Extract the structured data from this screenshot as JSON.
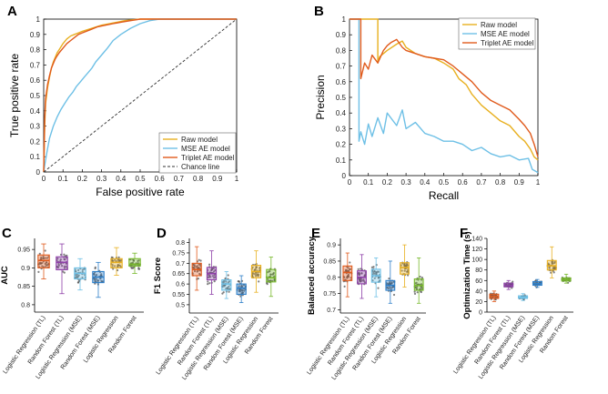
{
  "colors": {
    "raw": "#E8B020",
    "mse": "#6EC0E6",
    "triplet": "#E05A1C",
    "chance": "#333333",
    "box": [
      "#E05A1C",
      "#8E3FA8",
      "#6EC0E6",
      "#2E7FC8",
      "#E8B020",
      "#76B82A"
    ]
  },
  "chart_data": [
    {
      "panel": "A",
      "type": "line",
      "title": "",
      "xlabel": "False positive rate",
      "ylabel": "True positive rate",
      "xlim": [
        0,
        1
      ],
      "ylim": [
        0,
        1
      ],
      "xticks": [
        "0",
        "0.1",
        "0.2",
        "0.3",
        "0.4",
        "0.5",
        "0.6",
        "0.7",
        "0.8",
        "0.9",
        "1"
      ],
      "yticks": [
        "0",
        "0.1",
        "0.2",
        "0.3",
        "0.4",
        "0.5",
        "0.6",
        "0.7",
        "0.8",
        "0.9",
        "1"
      ],
      "legend_position": "bottom-right",
      "series": [
        {
          "name": "Raw model",
          "color_key": "raw",
          "dash": false,
          "x": [
            0,
            0.005,
            0.01,
            0.02,
            0.03,
            0.04,
            0.05,
            0.06,
            0.07,
            0.08,
            0.1,
            0.12,
            0.14,
            0.16,
            0.18,
            0.2,
            0.25,
            0.3,
            0.34,
            0.38,
            0.42,
            0.5,
            1.0
          ],
          "y": [
            0,
            0.3,
            0.45,
            0.55,
            0.62,
            0.68,
            0.72,
            0.75,
            0.78,
            0.8,
            0.84,
            0.87,
            0.89,
            0.9,
            0.91,
            0.92,
            0.94,
            0.96,
            0.97,
            0.98,
            0.99,
            1.0,
            1.0
          ]
        },
        {
          "name": "MSE AE model",
          "color_key": "mse",
          "dash": false,
          "x": [
            0,
            0.01,
            0.02,
            0.03,
            0.05,
            0.07,
            0.09,
            0.11,
            0.13,
            0.15,
            0.17,
            0.19,
            0.21,
            0.23,
            0.25,
            0.27,
            0.29,
            0.31,
            0.33,
            0.36,
            0.4,
            0.45,
            0.5,
            0.55,
            0.6,
            1.0
          ],
          "y": [
            0,
            0.08,
            0.15,
            0.22,
            0.3,
            0.36,
            0.41,
            0.45,
            0.49,
            0.52,
            0.56,
            0.59,
            0.62,
            0.65,
            0.68,
            0.72,
            0.75,
            0.78,
            0.81,
            0.86,
            0.9,
            0.94,
            0.97,
            0.99,
            1.0,
            1.0
          ]
        },
        {
          "name": "Triplet AE model",
          "color_key": "triplet",
          "dash": false,
          "x": [
            0,
            0.005,
            0.01,
            0.02,
            0.03,
            0.04,
            0.05,
            0.06,
            0.07,
            0.08,
            0.1,
            0.12,
            0.14,
            0.16,
            0.18,
            0.2,
            0.24,
            0.28,
            0.32,
            0.36,
            0.4,
            0.45,
            0.5,
            1.0
          ],
          "y": [
            0,
            0.35,
            0.48,
            0.57,
            0.63,
            0.68,
            0.71,
            0.74,
            0.76,
            0.78,
            0.81,
            0.84,
            0.86,
            0.88,
            0.9,
            0.91,
            0.93,
            0.95,
            0.96,
            0.97,
            0.98,
            0.99,
            1.0,
            1.0
          ]
        },
        {
          "name": "Chance line",
          "color_key": "chance",
          "dash": true,
          "x": [
            0,
            1
          ],
          "y": [
            0,
            1
          ]
        }
      ]
    },
    {
      "panel": "B",
      "type": "line",
      "title": "",
      "xlabel": "Recall",
      "ylabel": "Precision",
      "xlim": [
        0,
        1
      ],
      "ylim": [
        0,
        1
      ],
      "xticks": [
        "0",
        "0.1",
        "0.2",
        "0.3",
        "0.4",
        "0.5",
        "0.6",
        "0.7",
        "0.8",
        "0.9",
        "1"
      ],
      "yticks": [
        "0",
        "0.1",
        "0.2",
        "0.3",
        "0.4",
        "0.5",
        "0.6",
        "0.7",
        "0.8",
        "0.9",
        "1"
      ],
      "legend_position": "top-right",
      "series": [
        {
          "name": "Raw model",
          "color_key": "raw",
          "x": [
            0,
            0.15,
            0.15,
            0.16,
            0.2,
            0.25,
            0.28,
            0.3,
            0.35,
            0.4,
            0.45,
            0.5,
            0.55,
            0.58,
            0.62,
            0.65,
            0.7,
            0.75,
            0.8,
            0.85,
            0.9,
            0.93,
            0.96,
            0.98,
            1.0
          ],
          "y": [
            1.0,
            1.0,
            0.72,
            0.76,
            0.8,
            0.84,
            0.86,
            0.82,
            0.78,
            0.76,
            0.75,
            0.72,
            0.68,
            0.62,
            0.58,
            0.52,
            0.45,
            0.4,
            0.35,
            0.32,
            0.25,
            0.22,
            0.17,
            0.12,
            0.1
          ]
        },
        {
          "name": "MSE AE model",
          "color_key": "mse",
          "x": [
            0,
            0.05,
            0.05,
            0.06,
            0.08,
            0.1,
            0.12,
            0.15,
            0.18,
            0.2,
            0.25,
            0.28,
            0.3,
            0.35,
            0.4,
            0.45,
            0.5,
            0.55,
            0.6,
            0.65,
            0.7,
            0.75,
            0.8,
            0.85,
            0.9,
            0.95,
            0.97,
            1.0
          ],
          "y": [
            1.0,
            1.0,
            0.22,
            0.28,
            0.2,
            0.33,
            0.25,
            0.37,
            0.27,
            0.4,
            0.32,
            0.42,
            0.3,
            0.34,
            0.27,
            0.25,
            0.22,
            0.22,
            0.2,
            0.16,
            0.18,
            0.14,
            0.12,
            0.13,
            0.1,
            0.11,
            0.04,
            0.02
          ]
        },
        {
          "name": "Triplet AE model",
          "color_key": "triplet",
          "x": [
            0,
            0.06,
            0.06,
            0.08,
            0.1,
            0.12,
            0.15,
            0.18,
            0.2,
            0.22,
            0.25,
            0.28,
            0.3,
            0.35,
            0.4,
            0.45,
            0.5,
            0.55,
            0.6,
            0.65,
            0.7,
            0.75,
            0.8,
            0.85,
            0.9,
            0.93,
            0.96,
            0.98,
            1.0
          ],
          "y": [
            1.0,
            1.0,
            0.62,
            0.72,
            0.68,
            0.77,
            0.72,
            0.8,
            0.83,
            0.85,
            0.87,
            0.82,
            0.8,
            0.78,
            0.76,
            0.75,
            0.74,
            0.7,
            0.65,
            0.6,
            0.53,
            0.48,
            0.45,
            0.42,
            0.36,
            0.32,
            0.27,
            0.2,
            0.12
          ]
        }
      ]
    },
    {
      "panel": "C",
      "type": "box",
      "ylabel": "AUC",
      "ylim": [
        0.78,
        0.98
      ],
      "yticks": [
        0.8,
        0.85,
        0.9,
        0.95
      ],
      "categories": [
        "Logistic Regression (TL)",
        "Random Forest (TL)",
        "Logistic Regression (MSE)",
        "Random Forest (MSE)",
        "Logistic Regression",
        "Random Forest"
      ],
      "boxes": [
        {
          "min": 0.87,
          "q1": 0.9,
          "median": 0.92,
          "q3": 0.935,
          "max": 0.965
        },
        {
          "min": 0.83,
          "q1": 0.895,
          "median": 0.915,
          "q3": 0.93,
          "max": 0.965
        },
        {
          "min": 0.84,
          "q1": 0.87,
          "median": 0.885,
          "q3": 0.9,
          "max": 0.925
        },
        {
          "min": 0.82,
          "q1": 0.86,
          "median": 0.875,
          "q3": 0.89,
          "max": 0.915
        },
        {
          "min": 0.88,
          "q1": 0.9,
          "median": 0.915,
          "q3": 0.925,
          "max": 0.955
        },
        {
          "min": 0.885,
          "q1": 0.905,
          "median": 0.91,
          "q3": 0.925,
          "max": 0.94
        }
      ]
    },
    {
      "panel": "D",
      "type": "box",
      "ylabel": "F1 Score",
      "ylim": [
        0.46,
        0.82
      ],
      "yticks": [
        0.5,
        0.55,
        0.6,
        0.65,
        0.7,
        0.75,
        0.8
      ],
      "categories": [
        "Logistic Regression (TL)",
        "Random Forest (TL)",
        "Logistic Regression (MSE)",
        "Random Forest (MSE)",
        "Logistic Regression",
        "Random Forest"
      ],
      "boxes": [
        {
          "min": 0.57,
          "q1": 0.64,
          "median": 0.67,
          "q3": 0.7,
          "max": 0.78
        },
        {
          "min": 0.55,
          "q1": 0.62,
          "median": 0.65,
          "q3": 0.68,
          "max": 0.76
        },
        {
          "min": 0.53,
          "q1": 0.57,
          "median": 0.6,
          "q3": 0.62,
          "max": 0.66
        },
        {
          "min": 0.51,
          "q1": 0.55,
          "median": 0.58,
          "q3": 0.6,
          "max": 0.64
        },
        {
          "min": 0.56,
          "q1": 0.63,
          "median": 0.66,
          "q3": 0.69,
          "max": 0.76
        },
        {
          "min": 0.54,
          "q1": 0.61,
          "median": 0.63,
          "q3": 0.67,
          "max": 0.73
        }
      ]
    },
    {
      "panel": "E",
      "type": "box",
      "ylabel": "Balanced accuracy",
      "ylim": [
        0.69,
        0.92
      ],
      "yticks": [
        0.7,
        0.75,
        0.8,
        0.85,
        0.9
      ],
      "categories": [
        "Logistic Regression (TL)",
        "Random Forest (TL)",
        "Logistic Regression (MSE)",
        "Random Forest (MSE)",
        "Logistic Regression",
        "Random Forest"
      ],
      "boxes": [
        {
          "min": 0.74,
          "q1": 0.79,
          "median": 0.815,
          "q3": 0.835,
          "max": 0.875
        },
        {
          "min": 0.735,
          "q1": 0.78,
          "median": 0.8,
          "q3": 0.82,
          "max": 0.87
        },
        {
          "min": 0.74,
          "q1": 0.785,
          "median": 0.805,
          "q3": 0.825,
          "max": 0.86
        },
        {
          "min": 0.72,
          "q1": 0.76,
          "median": 0.775,
          "q3": 0.79,
          "max": 0.85
        },
        {
          "min": 0.77,
          "q1": 0.81,
          "median": 0.83,
          "q3": 0.845,
          "max": 0.9
        },
        {
          "min": 0.72,
          "q1": 0.76,
          "median": 0.775,
          "q3": 0.795,
          "max": 0.86
        }
      ]
    },
    {
      "panel": "F",
      "type": "box",
      "ylabel": "Optimization Time (s)",
      "ylim": [
        0,
        140
      ],
      "yticks": [
        0,
        20,
        40,
        60,
        80,
        100,
        120,
        140
      ],
      "categories": [
        "Logistic Regression (TL)",
        "Random Forest (TL)",
        "Logistic Regression (MSE)",
        "Random Forest (MSE)",
        "Logistic Regression",
        "Random Forest"
      ],
      "boxes": [
        {
          "min": 20,
          "q1": 26,
          "median": 30,
          "q3": 34,
          "max": 40
        },
        {
          "min": 43,
          "q1": 48,
          "median": 51,
          "q3": 55,
          "max": 60
        },
        {
          "min": 22,
          "q1": 26,
          "median": 28,
          "q3": 31,
          "max": 35
        },
        {
          "min": 47,
          "q1": 51,
          "median": 54,
          "q3": 58,
          "max": 62
        },
        {
          "min": 65,
          "q1": 80,
          "median": 88,
          "q3": 98,
          "max": 124
        },
        {
          "min": 55,
          "q1": 59,
          "median": 62,
          "q3": 65,
          "max": 72
        }
      ]
    }
  ]
}
